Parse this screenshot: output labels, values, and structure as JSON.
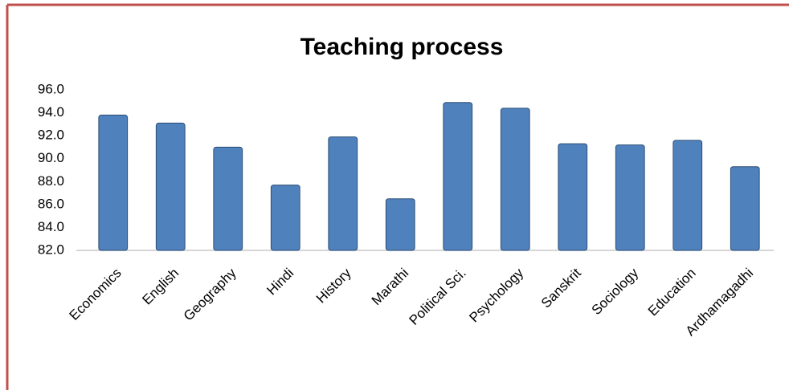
{
  "chart_data": {
    "type": "bar",
    "title": "Teaching process",
    "categories": [
      "Economics",
      "English",
      "Geography",
      "Hindi",
      "History",
      "Marathi",
      "Political Sci.",
      "Psychology",
      "Sanskrit",
      "Sociology",
      "Education",
      "Ardhamagadhi"
    ],
    "values": [
      93.8,
      93.1,
      91.0,
      87.7,
      91.9,
      86.5,
      94.9,
      94.4,
      91.3,
      91.2,
      91.6,
      89.3
    ],
    "color": "#4f81bd",
    "ylim": [
      82,
      96
    ],
    "yticks": [
      {
        "value": 82,
        "label": "82.0"
      },
      {
        "value": 84,
        "label": "84.0"
      },
      {
        "value": 86,
        "label": "86.0"
      },
      {
        "value": 88,
        "label": "88.0"
      },
      {
        "value": 90,
        "label": "90.0"
      },
      {
        "value": 92,
        "label": "92.0"
      },
      {
        "value": 94,
        "label": "94.0"
      },
      {
        "value": 96,
        "label": "96.0"
      }
    ],
    "grid": false
  }
}
